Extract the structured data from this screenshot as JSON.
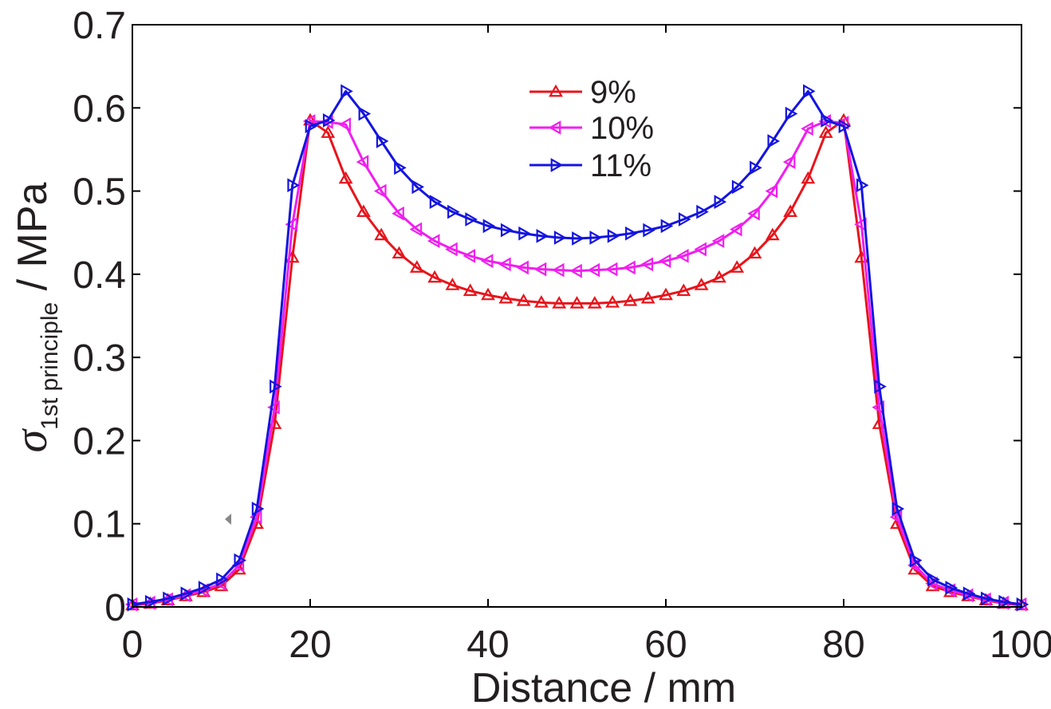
{
  "chart_data": {
    "type": "line",
    "title": "",
    "xlabel": "Distance / mm",
    "ylabel_symbol": "σ",
    "ylabel_subscript": "1st principle",
    "ylabel_unit": " / MPa",
    "xlim": [
      0,
      100
    ],
    "ylim": [
      0,
      0.7
    ],
    "xticks": [
      "0",
      "20",
      "40",
      "60",
      "80",
      "100"
    ],
    "yticks": [
      "0",
      "0.1",
      "0.2",
      "0.3",
      "0.4",
      "0.5",
      "0.6",
      "0.7"
    ],
    "xtick_values": [
      0,
      20,
      40,
      60,
      80,
      100
    ],
    "ytick_values": [
      0,
      0.1,
      0.2,
      0.3,
      0.4,
      0.5,
      0.6,
      0.7
    ],
    "grid": false,
    "legend_position": "top-center",
    "x": [
      0,
      2,
      4,
      6,
      8,
      10,
      12,
      14,
      16,
      18,
      20,
      22,
      24,
      26,
      28,
      30,
      32,
      34,
      36,
      38,
      40,
      42,
      44,
      46,
      48,
      50,
      52,
      54,
      56,
      58,
      60,
      62,
      64,
      66,
      68,
      70,
      72,
      74,
      76,
      78,
      80,
      82,
      84,
      86,
      88,
      90,
      92,
      94,
      96,
      98,
      100
    ],
    "series": [
      {
        "name": "9%",
        "color": "#e8141b",
        "marker": "triangle-up",
        "values": [
          0.002,
          0.004,
          0.008,
          0.013,
          0.018,
          0.025,
          0.045,
          0.1,
          0.22,
          0.42,
          0.585,
          0.57,
          0.515,
          0.475,
          0.447,
          0.425,
          0.408,
          0.396,
          0.387,
          0.38,
          0.375,
          0.371,
          0.368,
          0.366,
          0.365,
          0.365,
          0.365,
          0.366,
          0.368,
          0.371,
          0.375,
          0.38,
          0.387,
          0.396,
          0.408,
          0.425,
          0.447,
          0.475,
          0.515,
          0.57,
          0.585,
          0.42,
          0.22,
          0.1,
          0.045,
          0.025,
          0.018,
          0.013,
          0.008,
          0.004,
          0.002
        ]
      },
      {
        "name": "10%",
        "color": "#f01ef0",
        "marker": "triangle-left",
        "values": [
          0.003,
          0.005,
          0.009,
          0.014,
          0.02,
          0.028,
          0.05,
          0.108,
          0.24,
          0.46,
          0.584,
          0.583,
          0.58,
          0.535,
          0.5,
          0.473,
          0.454,
          0.44,
          0.43,
          0.422,
          0.416,
          0.412,
          0.408,
          0.406,
          0.405,
          0.404,
          0.405,
          0.406,
          0.408,
          0.412,
          0.416,
          0.422,
          0.43,
          0.44,
          0.454,
          0.473,
          0.5,
          0.535,
          0.575,
          0.584,
          0.582,
          0.46,
          0.24,
          0.108,
          0.05,
          0.028,
          0.02,
          0.014,
          0.009,
          0.005,
          0.003
        ]
      },
      {
        "name": "11%",
        "color": "#1414e0",
        "marker": "triangle-right",
        "values": [
          0.003,
          0.006,
          0.01,
          0.016,
          0.023,
          0.033,
          0.056,
          0.118,
          0.265,
          0.507,
          0.578,
          0.585,
          0.62,
          0.593,
          0.56,
          0.528,
          0.505,
          0.487,
          0.475,
          0.466,
          0.458,
          0.453,
          0.449,
          0.446,
          0.444,
          0.443,
          0.444,
          0.446,
          0.449,
          0.453,
          0.458,
          0.466,
          0.475,
          0.487,
          0.505,
          0.528,
          0.56,
          0.593,
          0.62,
          0.585,
          0.578,
          0.507,
          0.265,
          0.118,
          0.056,
          0.033,
          0.023,
          0.016,
          0.01,
          0.006,
          0.003
        ]
      }
    ]
  }
}
